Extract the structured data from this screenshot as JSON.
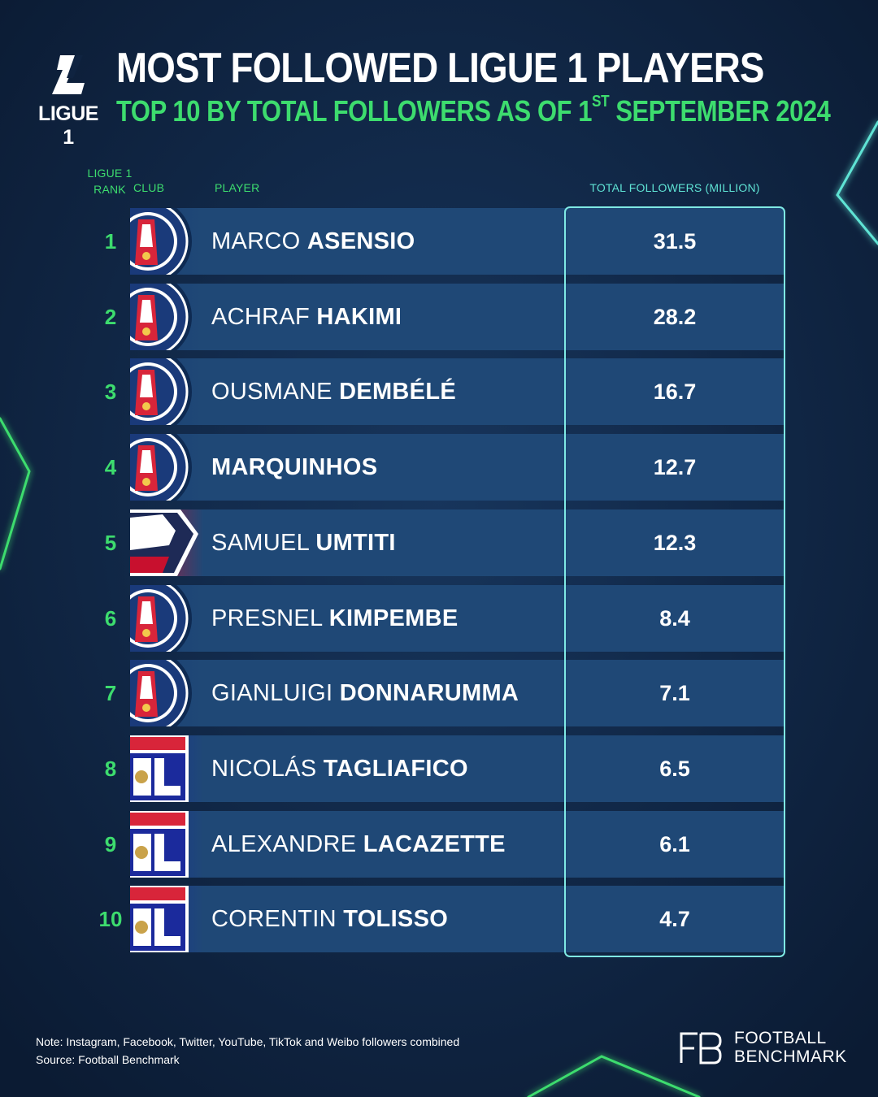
{
  "header": {
    "logo_text": "LIGUE 1",
    "title": "MOST FOLLOWED LIGUE 1 PLAYERS",
    "subtitle_prefix": "TOP 10 BY TOTAL FOLLOWERS AS OF 1",
    "subtitle_sup": "ST",
    "subtitle_suffix": " SEPTEMBER 2024"
  },
  "columns": {
    "rank_line1": "LIGUE 1",
    "rank_line2": "RANK",
    "club": "CLUB",
    "player": "PLAYER",
    "followers": "TOTAL FOLLOWERS (MILLION)"
  },
  "colors": {
    "background": "#0f2340",
    "row": "#1f4876",
    "accent_green": "#3ddc6e",
    "frame": "#7fe9e4",
    "psg_blue": "#1a3a7a",
    "psg_red": "#d8253a",
    "losc_red": "#c8102e",
    "ol_blue": "#1b2a9c"
  },
  "chart_data": {
    "type": "table",
    "columns": [
      "LIGUE 1 RANK",
      "CLUB",
      "PLAYER",
      "TOTAL FOLLOWERS (MILLION)"
    ],
    "rows": [
      {
        "rank": "1",
        "club": "psg",
        "first": "MARCO",
        "last": "ASENSIO",
        "followers": "31.5"
      },
      {
        "rank": "2",
        "club": "psg",
        "first": "ACHRAF",
        "last": "HAKIMI",
        "followers": "28.2"
      },
      {
        "rank": "3",
        "club": "psg",
        "first": "OUSMANE",
        "last": "DEMBÉLÉ",
        "followers": "16.7"
      },
      {
        "rank": "4",
        "club": "psg",
        "first": "",
        "last": "MARQUINHOS",
        "followers": "12.7"
      },
      {
        "rank": "5",
        "club": "losc",
        "first": "SAMUEL",
        "last": "UMTITI",
        "followers": "12.3"
      },
      {
        "rank": "6",
        "club": "psg",
        "first": "PRESNEL",
        "last": "KIMPEMBE",
        "followers": "8.4"
      },
      {
        "rank": "7",
        "club": "psg",
        "first": "GIANLUIGI",
        "last": "DONNARUMMA",
        "followers": "7.1"
      },
      {
        "rank": "8",
        "club": "ol",
        "first": "NICOLÁS",
        "last": "TAGLIAFICO",
        "followers": "6.5"
      },
      {
        "rank": "9",
        "club": "ol",
        "first": "ALEXANDRE",
        "last": "LACAZETTE",
        "followers": "6.1"
      },
      {
        "rank": "10",
        "club": "ol",
        "first": "CORENTIN",
        "last": "TOLISSO",
        "followers": "4.7"
      }
    ]
  },
  "footer": {
    "note": "Note: Instagram, Facebook, Twitter, YouTube, TikTok and Weibo followers combined",
    "source": "Source: Football Benchmark",
    "brand_line1": "FOOTBALL",
    "brand_line2": "BENCHMARK"
  }
}
